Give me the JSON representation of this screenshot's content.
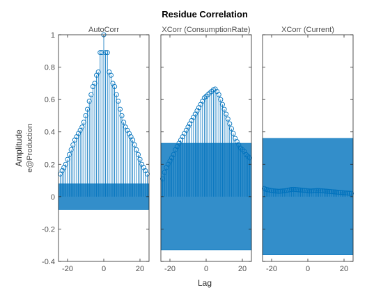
{
  "chart_data": {
    "type": "stem",
    "title": "Residue Correlation",
    "xlabel": "Lag",
    "ylabel": "Amplitude",
    "ylabel_secondary": "e@Production",
    "shared_ylim": [
      -0.4,
      1
    ],
    "yticks": [
      "1",
      "0.8",
      "0.6",
      "0.4",
      "0.2",
      "0",
      "-0.2",
      "-0.4"
    ],
    "xticks": [
      "-20",
      "0",
      "20"
    ],
    "colors": {
      "stem": "#0072bd",
      "band_fill": "#0072bd",
      "axes": "#262626"
    },
    "panels": [
      {
        "title": "AutoCorr",
        "xlim": [
          -25,
          25
        ],
        "confidence_band": [
          -0.08,
          0.08
        ],
        "lags": [
          -24,
          -23,
          -22,
          -21,
          -20,
          -19,
          -18,
          -17,
          -16,
          -15,
          -14,
          -13,
          -12,
          -11,
          -10,
          -9,
          -8,
          -7,
          -6,
          -5,
          -4,
          -3,
          -2,
          -1,
          0,
          1,
          2,
          3,
          4,
          5,
          6,
          7,
          8,
          9,
          10,
          11,
          12,
          13,
          14,
          15,
          16,
          17,
          18,
          19,
          20,
          21,
          22,
          23,
          24
        ],
        "values": [
          0.14,
          0.16,
          0.18,
          0.2,
          0.23,
          0.26,
          0.29,
          0.32,
          0.35,
          0.37,
          0.39,
          0.41,
          0.43,
          0.46,
          0.5,
          0.54,
          0.59,
          0.63,
          0.68,
          0.7,
          0.75,
          0.77,
          0.89,
          0.89,
          1.0,
          0.89,
          0.89,
          0.77,
          0.75,
          0.7,
          0.68,
          0.63,
          0.59,
          0.54,
          0.5,
          0.46,
          0.43,
          0.41,
          0.39,
          0.37,
          0.35,
          0.32,
          0.29,
          0.26,
          0.23,
          0.2,
          0.18,
          0.16,
          0.14
        ]
      },
      {
        "title": "XCorr (ConsumptionRate)",
        "xlim": [
          -25,
          25
        ],
        "confidence_band": [
          -0.33,
          0.33
        ],
        "lags": [
          -24,
          -23,
          -22,
          -21,
          -20,
          -19,
          -18,
          -17,
          -16,
          -15,
          -14,
          -13,
          -12,
          -11,
          -10,
          -9,
          -8,
          -7,
          -6,
          -5,
          -4,
          -3,
          -2,
          -1,
          0,
          1,
          2,
          3,
          4,
          5,
          6,
          7,
          8,
          9,
          10,
          11,
          12,
          13,
          14,
          15,
          16,
          17,
          18,
          19,
          20,
          21,
          22,
          23,
          24
        ],
        "values": [
          0.11,
          0.15,
          0.18,
          0.2,
          0.22,
          0.24,
          0.26,
          0.29,
          0.31,
          0.33,
          0.35,
          0.37,
          0.39,
          0.41,
          0.43,
          0.45,
          0.47,
          0.49,
          0.51,
          0.53,
          0.55,
          0.57,
          0.59,
          0.61,
          0.62,
          0.63,
          0.64,
          0.65,
          0.66,
          0.665,
          0.65,
          0.63,
          0.6,
          0.57,
          0.54,
          0.51,
          0.48,
          0.45,
          0.42,
          0.39,
          0.36,
          0.34,
          0.32,
          0.3,
          0.29,
          0.28,
          0.26,
          0.25,
          0.24
        ]
      },
      {
        "title": "XCorr (Current)",
        "xlim": [
          -25,
          25
        ],
        "confidence_band": [
          -0.36,
          0.36
        ],
        "lags": [
          -24,
          -23,
          -22,
          -21,
          -20,
          -19,
          -18,
          -17,
          -16,
          -15,
          -14,
          -13,
          -12,
          -11,
          -10,
          -9,
          -8,
          -7,
          -6,
          -5,
          -4,
          -3,
          -2,
          -1,
          0,
          1,
          2,
          3,
          4,
          5,
          6,
          7,
          8,
          9,
          10,
          11,
          12,
          13,
          14,
          15,
          16,
          17,
          18,
          19,
          20,
          21,
          22,
          23,
          24
        ],
        "values": [
          0.05,
          0.045,
          0.042,
          0.04,
          0.038,
          0.036,
          0.035,
          0.034,
          0.033,
          0.034,
          0.035,
          0.036,
          0.038,
          0.04,
          0.042,
          0.044,
          0.045,
          0.044,
          0.043,
          0.042,
          0.041,
          0.04,
          0.039,
          0.038,
          0.036,
          0.035,
          0.035,
          0.036,
          0.037,
          0.038,
          0.038,
          0.037,
          0.036,
          0.035,
          0.034,
          0.033,
          0.032,
          0.031,
          0.03,
          0.029,
          0.028,
          0.027,
          0.026,
          0.025,
          0.024,
          0.023,
          0.022,
          0.021,
          0.02
        ]
      }
    ]
  }
}
